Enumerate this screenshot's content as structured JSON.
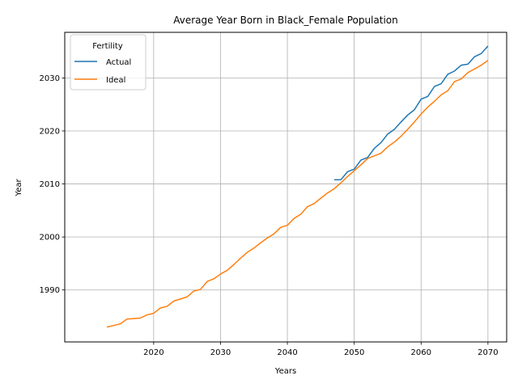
{
  "chart_data": {
    "type": "line",
    "title": "Average Year Born in Black_Female Population",
    "xlabel": "Years",
    "ylabel": "Year",
    "xlim": [
      2006.7,
      2072.8
    ],
    "ylim": [
      1980.2,
      2038.6
    ],
    "xticks": [
      2020,
      2030,
      2040,
      2050,
      2060,
      2070
    ],
    "yticks": [
      1990,
      2000,
      2010,
      2020,
      2030
    ],
    "grid": true,
    "legend": {
      "title": "Fertility",
      "placement": "top-left"
    },
    "series": [
      {
        "name": "Actual",
        "color": "#1f77b4",
        "x": [
          2047,
          2048,
          2049,
          2050,
          2051,
          2052,
          2053,
          2054,
          2055,
          2056,
          2057,
          2058,
          2059,
          2060,
          2061,
          2062,
          2063,
          2064,
          2065,
          2066,
          2067,
          2068,
          2069,
          2070
        ],
        "y": [
          2010.8,
          2010.8,
          2012.3,
          2012.8,
          2014.5,
          2015.0,
          2016.7,
          2017.8,
          2019.4,
          2020.3,
          2021.7,
          2023.0,
          2024.0,
          2026.0,
          2026.5,
          2028.4,
          2028.9,
          2030.7,
          2031.3,
          2032.4,
          2032.6,
          2034.0,
          2034.6,
          2036.0
        ]
      },
      {
        "name": "Ideal",
        "color": "#ff7f0e",
        "x": [
          2013,
          2014,
          2015,
          2016,
          2017,
          2018,
          2019,
          2020,
          2021,
          2022,
          2023,
          2024,
          2025,
          2026,
          2027,
          2028,
          2029,
          2030,
          2031,
          2032,
          2033,
          2034,
          2035,
          2036,
          2037,
          2038,
          2039,
          2040,
          2041,
          2042,
          2043,
          2044,
          2045,
          2046,
          2047,
          2048,
          2049,
          2050,
          2051,
          2052,
          2053,
          2054,
          2055,
          2056,
          2057,
          2058,
          2059,
          2060,
          2061,
          2062,
          2063,
          2064,
          2065,
          2066,
          2067,
          2068,
          2069,
          2070
        ],
        "y": [
          1983.0,
          1983.3,
          1983.6,
          1984.5,
          1984.6,
          1984.7,
          1985.3,
          1985.6,
          1986.6,
          1986.9,
          1987.9,
          1988.3,
          1988.7,
          1989.8,
          1990.1,
          1991.6,
          1992.1,
          1993.0,
          1993.7,
          1994.8,
          1996.0,
          1997.1,
          1997.9,
          1998.9,
          1999.8,
          2000.6,
          2001.8,
          2002.2,
          2003.5,
          2004.3,
          2005.7,
          2006.3,
          2007.3,
          2008.3,
          2009.1,
          2010.2,
          2011.4,
          2012.5,
          2013.6,
          2014.8,
          2015.3,
          2015.8,
          2017.0,
          2017.9,
          2019.0,
          2020.3,
          2021.7,
          2023.2,
          2024.5,
          2025.6,
          2026.8,
          2027.6,
          2029.3,
          2029.8,
          2031.0,
          2031.7,
          2032.4,
          2033.3
        ]
      }
    ]
  }
}
